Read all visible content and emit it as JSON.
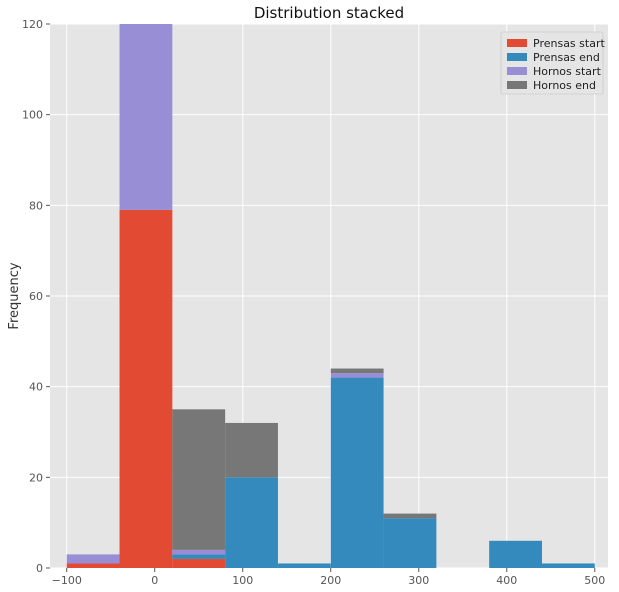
{
  "chart_data": {
    "type": "bar",
    "title": "Distribution stacked",
    "xlabel": "",
    "ylabel": "Frequency",
    "xlim": [
      -119,
      515
    ],
    "ylim": [
      0,
      120
    ],
    "xticks": [
      -100,
      0,
      100,
      200,
      300,
      400,
      500
    ],
    "yticks": [
      0,
      20,
      40,
      60,
      80,
      100,
      120
    ],
    "grid": true,
    "legend_position": "top-right",
    "bin_edges": [
      -100,
      -40,
      20,
      80,
      140,
      200,
      260,
      320,
      380,
      440,
      500
    ],
    "series": [
      {
        "name": "Prensas start",
        "color": "#e24a33",
        "values": [
          1,
          79,
          2,
          0,
          0,
          0,
          0,
          0,
          0,
          0
        ]
      },
      {
        "name": "Prensas end",
        "color": "#348abd",
        "values": [
          0,
          0,
          1,
          20,
          1,
          42,
          11,
          0,
          6,
          1
        ]
      },
      {
        "name": "Hornos start",
        "color": "#988ed5",
        "values": [
          2,
          46,
          1,
          0,
          0,
          1,
          0,
          0,
          0,
          0
        ]
      },
      {
        "name": "Hornos end",
        "color": "#777777",
        "values": [
          0,
          0,
          31,
          12,
          0,
          1,
          1,
          0,
          0,
          0
        ]
      }
    ]
  }
}
